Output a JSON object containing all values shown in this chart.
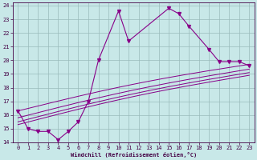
{
  "xlabel": "Windchill (Refroidissement éolien,°C)",
  "background_color": "#c8e8e8",
  "line_color": "#880088",
  "grid_color": "#99bbbb",
  "xlim": [
    -0.5,
    23.5
  ],
  "ylim": [
    14,
    24.2
  ],
  "xticks": [
    0,
    1,
    2,
    3,
    4,
    5,
    6,
    7,
    8,
    9,
    10,
    11,
    12,
    13,
    14,
    15,
    16,
    17,
    18,
    19,
    20,
    21,
    22,
    23
  ],
  "yticks": [
    14,
    15,
    16,
    17,
    18,
    19,
    20,
    21,
    22,
    23,
    24
  ],
  "main_x": [
    0,
    1,
    2,
    3,
    4,
    5,
    6,
    7,
    8,
    10,
    11,
    15,
    16,
    17,
    19,
    20,
    21,
    22,
    23
  ],
  "main_y": [
    16.3,
    15.0,
    14.8,
    14.8,
    14.2,
    14.8,
    15.5,
    17.0,
    20.0,
    23.6,
    21.4,
    23.8,
    23.4,
    22.5,
    20.8,
    19.9,
    19.9,
    19.9,
    19.6
  ],
  "smooth_lines": [
    {
      "x": [
        0,
        23
      ],
      "y": [
        16.3,
        19.7
      ]
    },
    {
      "x": [
        0,
        23
      ],
      "y": [
        15.8,
        19.35
      ]
    },
    {
      "x": [
        0,
        23
      ],
      "y": [
        15.5,
        19.1
      ]
    },
    {
      "x": [
        0,
        23
      ],
      "y": [
        15.3,
        18.9
      ]
    }
  ],
  "tick_fontsize": 5,
  "xlabel_fontsize": 5,
  "tick_color": "#440044",
  "spine_color": "#440044"
}
